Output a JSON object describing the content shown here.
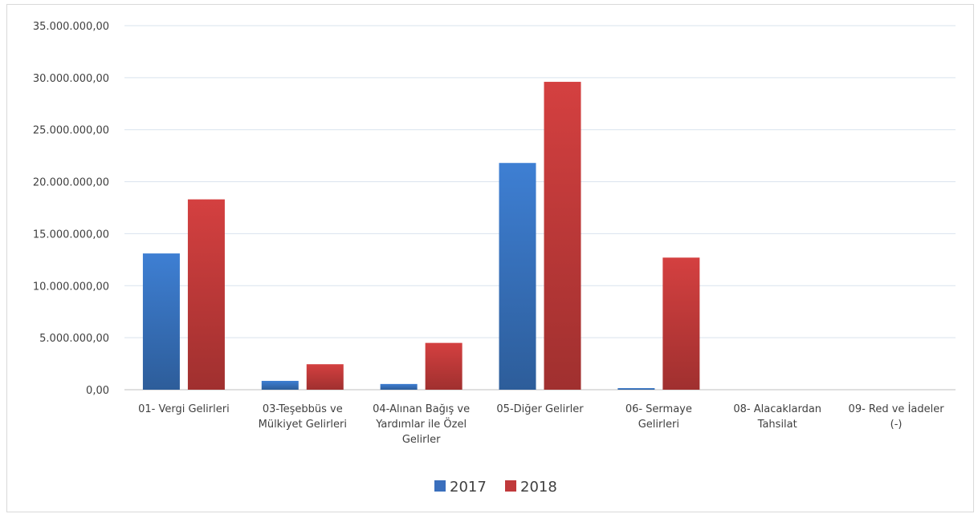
{
  "chart_data": {
    "type": "bar",
    "categories": [
      [
        "01- Vergi Gelirleri"
      ],
      [
        "03-Teşebbüs ve",
        "Mülkiyet Gelirleri"
      ],
      [
        "04-Alınan Bağış ve",
        "Yardımlar ile Özel",
        "Gelirler"
      ],
      [
        "05-Diğer Gelirler"
      ],
      [
        "06- Sermaye",
        "Gelirleri"
      ],
      [
        "08- Alacaklardan",
        "Tahsilat"
      ],
      [
        "09- Red ve İadeler",
        "(-)"
      ]
    ],
    "series": [
      {
        "name": "2017",
        "color": "#3a6fbd",
        "values": [
          13100000,
          850000,
          550000,
          21800000,
          150000,
          0,
          0
        ]
      },
      {
        "name": "2018",
        "color": "#c0393b",
        "values": [
          18300000,
          2450000,
          4500000,
          29600000,
          12700000,
          0,
          0
        ]
      }
    ],
    "y_ticks": [
      "0,00",
      "5.000.000,00",
      "10.000.000,00",
      "15.000.000,00",
      "20.000.000,00",
      "25.000.000,00",
      "30.000.000,00",
      "35.000.000,00"
    ],
    "ylim": [
      0,
      35000000
    ],
    "y_step": 5000000,
    "grid": true,
    "legend_position": "bottom",
    "title": "",
    "xlabel": "",
    "ylabel": ""
  }
}
